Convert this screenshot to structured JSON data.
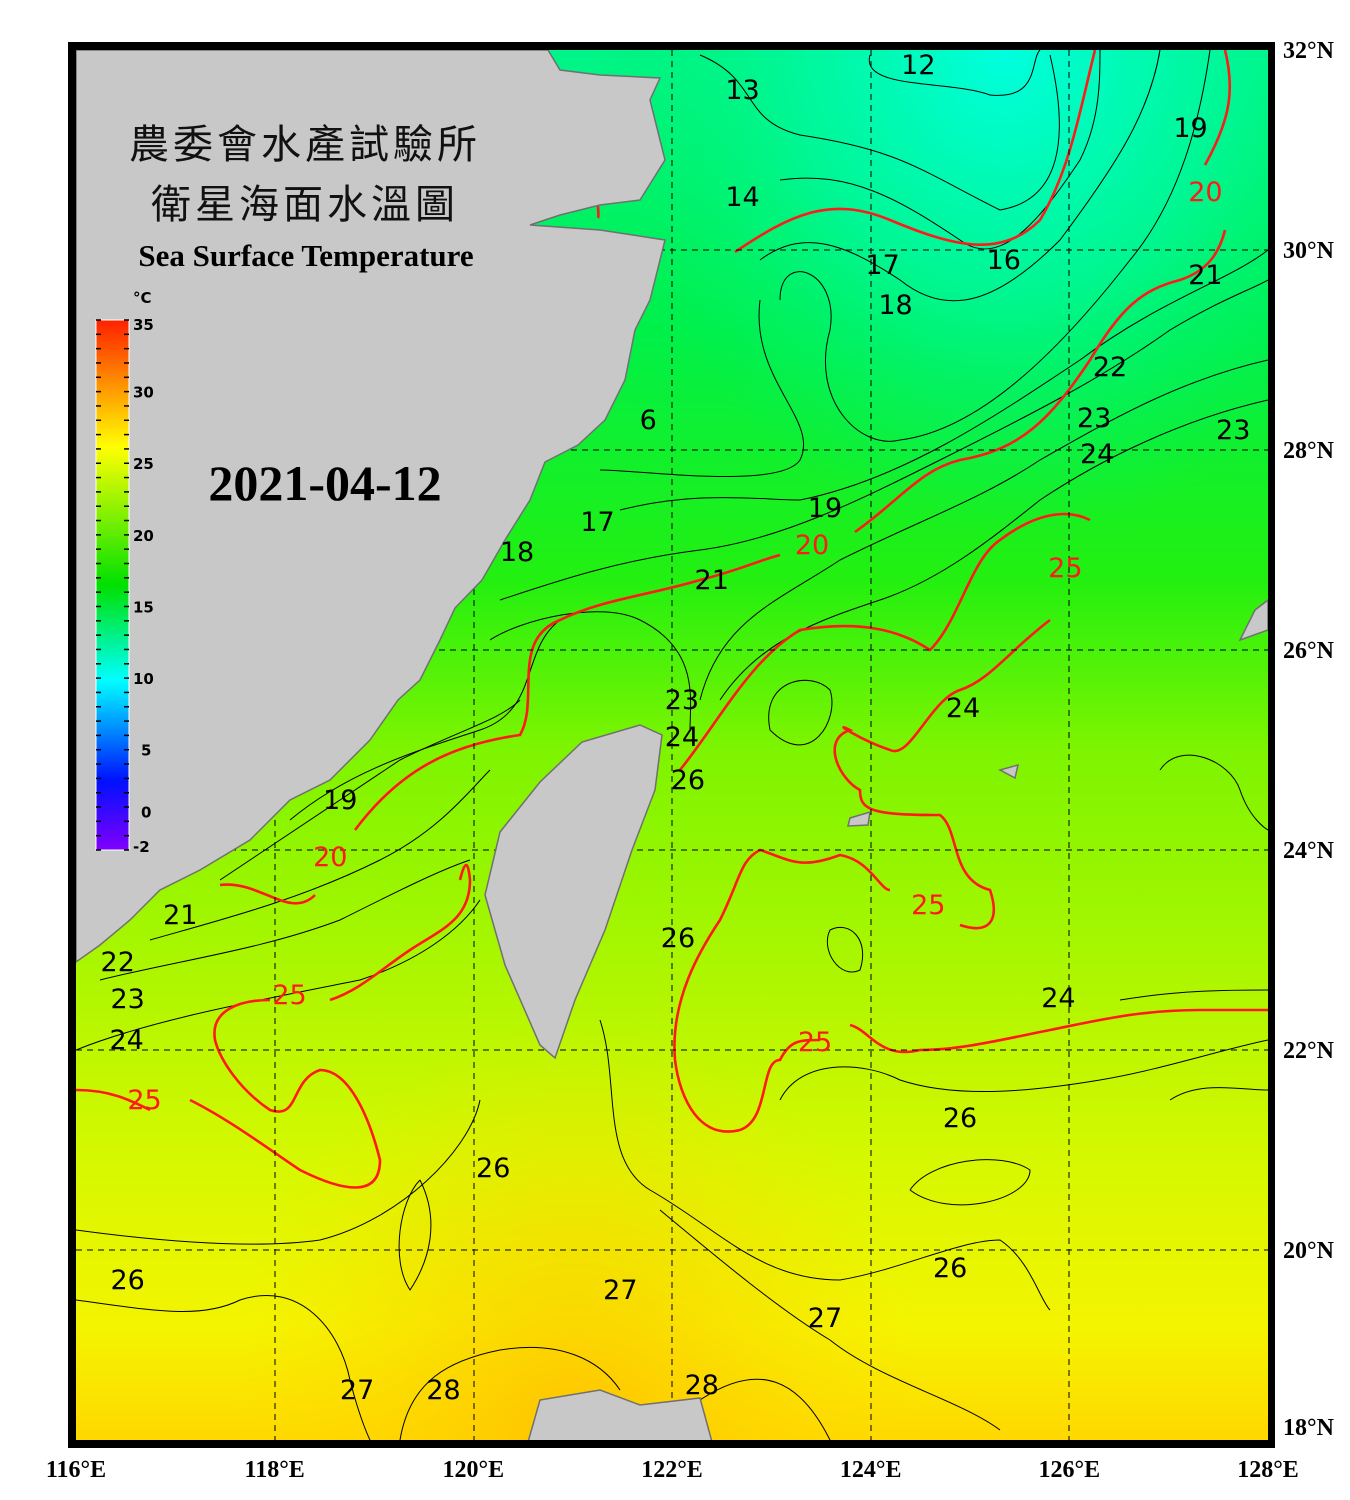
{
  "title": {
    "line1": "農委會水產試驗所",
    "line2": "衛星海面水溫圖",
    "english": "Sea Surface Temperature",
    "date": "2021-04-12"
  },
  "colorbar": {
    "unit": "°C",
    "min": -2,
    "max": 35,
    "ticks": [
      "35",
      "30",
      "25",
      "20",
      "15",
      "10",
      "5",
      "0",
      "-2"
    ],
    "tick_values": [
      35,
      30,
      25,
      20,
      15,
      10,
      5,
      0,
      -2
    ],
    "colors": [
      "#7f00ff",
      "#0000ff",
      "#00ffff",
      "#00ff00",
      "#ffff00",
      "#ff8000",
      "#ff2000"
    ]
  },
  "map": {
    "lon_range": [
      116,
      128
    ],
    "lat_range": [
      18,
      32
    ],
    "lon_labels": [
      "116°E",
      "118°E",
      "120°E",
      "122°E",
      "124°E",
      "126°E",
      "128°E"
    ],
    "lon_values": [
      116,
      118,
      120,
      122,
      124,
      126,
      128
    ],
    "lat_labels": [
      "32°N",
      "30°N",
      "28°N",
      "26°N",
      "24°N",
      "22°N",
      "20°N",
      "18°N"
    ],
    "lat_values": [
      32,
      30,
      28,
      26,
      24,
      22,
      20,
      18
    ],
    "land_color": "#c8c8c8",
    "contour_color": "#000000",
    "highlight_contour_color": "#ff1a1a",
    "contour_labels": [
      {
        "t": "12",
        "lon": 124.48,
        "lat": 31.85
      },
      {
        "t": "13",
        "lon": 122.71,
        "lat": 31.6
      },
      {
        "t": "14",
        "lon": 122.71,
        "lat": 30.53
      },
      {
        "t": "16",
        "lon": 125.34,
        "lat": 29.9
      },
      {
        "t": "17",
        "lon": 124.12,
        "lat": 29.85
      },
      {
        "t": "18",
        "lon": 124.25,
        "lat": 29.45
      },
      {
        "t": "19",
        "lon": 127.22,
        "lat": 31.22
      },
      {
        "t": "20",
        "lon": 127.37,
        "lat": 30.58,
        "red": true
      },
      {
        "t": "21",
        "lon": 127.37,
        "lat": 29.75
      },
      {
        "t": "22",
        "lon": 126.41,
        "lat": 28.83
      },
      {
        "t": "23",
        "lon": 126.25,
        "lat": 28.32
      },
      {
        "t": "24",
        "lon": 126.28,
        "lat": 28.2
      },
      {
        "t": "23",
        "lon": 127.65,
        "lat": 28.2
      },
      {
        "t": "6",
        "lon": 121.76,
        "lat": 28.3
      },
      {
        "t": "17",
        "lon": 121.25,
        "lat": 27.28
      },
      {
        "t": "18",
        "lon": 120.44,
        "lat": 26.98
      },
      {
        "t": "19",
        "lon": 123.54,
        "lat": 27.42
      },
      {
        "t": "20",
        "lon": 123.41,
        "lat": 27.25,
        "red": true
      },
      {
        "t": "21",
        "lon": 122.4,
        "lat": 26.7
      },
      {
        "t": "25",
        "lon": 125.96,
        "lat": 26.82,
        "red": true
      },
      {
        "t": "24",
        "lon": 124.93,
        "lat": 25.42
      },
      {
        "t": "23",
        "lon": 122.1,
        "lat": 25.5
      },
      {
        "t": "24",
        "lon": 122.1,
        "lat": 25.25
      },
      {
        "t": "26",
        "lon": 122.16,
        "lat": 24.7
      },
      {
        "t": "19",
        "lon": 118.66,
        "lat": 24.5
      },
      {
        "t": "20",
        "lon": 118.56,
        "lat": 23.93,
        "red": true
      },
      {
        "t": "21",
        "lon": 117.05,
        "lat": 23.35
      },
      {
        "t": "22",
        "lon": 116.42,
        "lat": 22.88
      },
      {
        "t": "23",
        "lon": 116.52,
        "lat": 22.63
      },
      {
        "t": "24",
        "lon": 116.51,
        "lat": 22.1
      },
      {
        "t": "25",
        "lon": 116.69,
        "lat": 21.5,
        "red": true
      },
      {
        "t": "25",
        "lon": 118.15,
        "lat": 22.55,
        "red": true
      },
      {
        "t": "25",
        "lon": 124.58,
        "lat": 23.45,
        "red": true
      },
      {
        "t": "26",
        "lon": 122.06,
        "lat": 23.12
      },
      {
        "t": "24",
        "lon": 125.89,
        "lat": 22.52
      },
      {
        "t": "25",
        "lon": 123.44,
        "lat": 22.08,
        "red": true
      },
      {
        "t": "26",
        "lon": 124.9,
        "lat": 21.32
      },
      {
        "t": "26",
        "lon": 120.2,
        "lat": 20.82
      },
      {
        "t": "26",
        "lon": 124.8,
        "lat": 19.82
      },
      {
        "t": "26",
        "lon": 116.52,
        "lat": 19.7
      },
      {
        "t": "27",
        "lon": 121.48,
        "lat": 19.6
      },
      {
        "t": "27",
        "lon": 123.54,
        "lat": 19.32
      },
      {
        "t": "27",
        "lon": 118.83,
        "lat": 18.6
      },
      {
        "t": "28",
        "lon": 119.7,
        "lat": 18.6
      },
      {
        "t": "28",
        "lon": 122.3,
        "lat": 18.65
      }
    ]
  }
}
